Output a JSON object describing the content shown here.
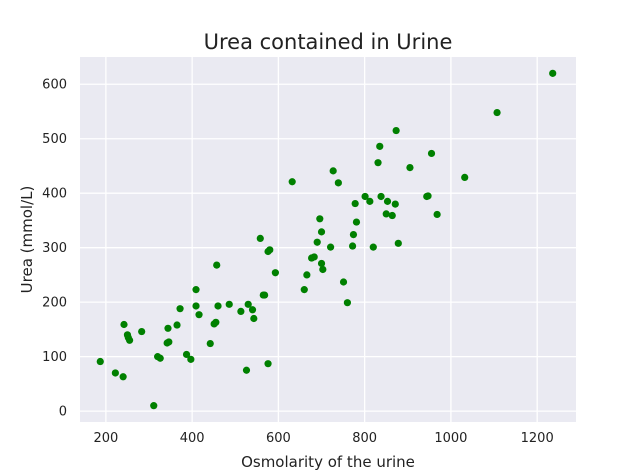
{
  "chart_data": {
    "type": "scatter",
    "title": "Urea contained in Urine",
    "xlabel": "Osmolarity of the urine",
    "ylabel": "Urea (mmol/L)",
    "xlim": [
      140,
      1290
    ],
    "ylim": [
      -20,
      650
    ],
    "xticks": [
      200,
      400,
      600,
      800,
      1000,
      1200
    ],
    "yticks": [
      0,
      100,
      200,
      300,
      400,
      500,
      600
    ],
    "grid": true,
    "background_color": "#eaeaf2",
    "point_color": "#008000",
    "points": [
      [
        187,
        91
      ],
      [
        222,
        70
      ],
      [
        240,
        63
      ],
      [
        242,
        159
      ],
      [
        250,
        140
      ],
      [
        252,
        135
      ],
      [
        255,
        130
      ],
      [
        283,
        146
      ],
      [
        311,
        10
      ],
      [
        320,
        100
      ],
      [
        326,
        97
      ],
      [
        342,
        125
      ],
      [
        344,
        152
      ],
      [
        346,
        127
      ],
      [
        365,
        158
      ],
      [
        372,
        188
      ],
      [
        387,
        104
      ],
      [
        397,
        95
      ],
      [
        409,
        193
      ],
      [
        409,
        223
      ],
      [
        416,
        177
      ],
      [
        442,
        124
      ],
      [
        451,
        160
      ],
      [
        455,
        163
      ],
      [
        457,
        268
      ],
      [
        460,
        193
      ],
      [
        486,
        196
      ],
      [
        513,
        183
      ],
      [
        526,
        75
      ],
      [
        530,
        196
      ],
      [
        540,
        186
      ],
      [
        543,
        170
      ],
      [
        558,
        317
      ],
      [
        565,
        213
      ],
      [
        568,
        213
      ],
      [
        576,
        87
      ],
      [
        576,
        293
      ],
      [
        580,
        296
      ],
      [
        593,
        254
      ],
      [
        632,
        421
      ],
      [
        660,
        223
      ],
      [
        666,
        250
      ],
      [
        677,
        281
      ],
      [
        683,
        283
      ],
      [
        690,
        310
      ],
      [
        696,
        353
      ],
      [
        700,
        329
      ],
      [
        700,
        271
      ],
      [
        703,
        260
      ],
      [
        721,
        301
      ],
      [
        727,
        441
      ],
      [
        739,
        419
      ],
      [
        751,
        237
      ],
      [
        760,
        199
      ],
      [
        772,
        303
      ],
      [
        774,
        324
      ],
      [
        778,
        381
      ],
      [
        781,
        347
      ],
      [
        801,
        394
      ],
      [
        812,
        385
      ],
      [
        820,
        301
      ],
      [
        831,
        456
      ],
      [
        835,
        486
      ],
      [
        838,
        394
      ],
      [
        850,
        362
      ],
      [
        853,
        385
      ],
      [
        864,
        359
      ],
      [
        871,
        380
      ],
      [
        873,
        515
      ],
      [
        878,
        308
      ],
      [
        905,
        447
      ],
      [
        944,
        394
      ],
      [
        947,
        395
      ],
      [
        955,
        473
      ],
      [
        968,
        361
      ],
      [
        1032,
        429
      ],
      [
        1107,
        548
      ],
      [
        1236,
        620
      ]
    ]
  }
}
